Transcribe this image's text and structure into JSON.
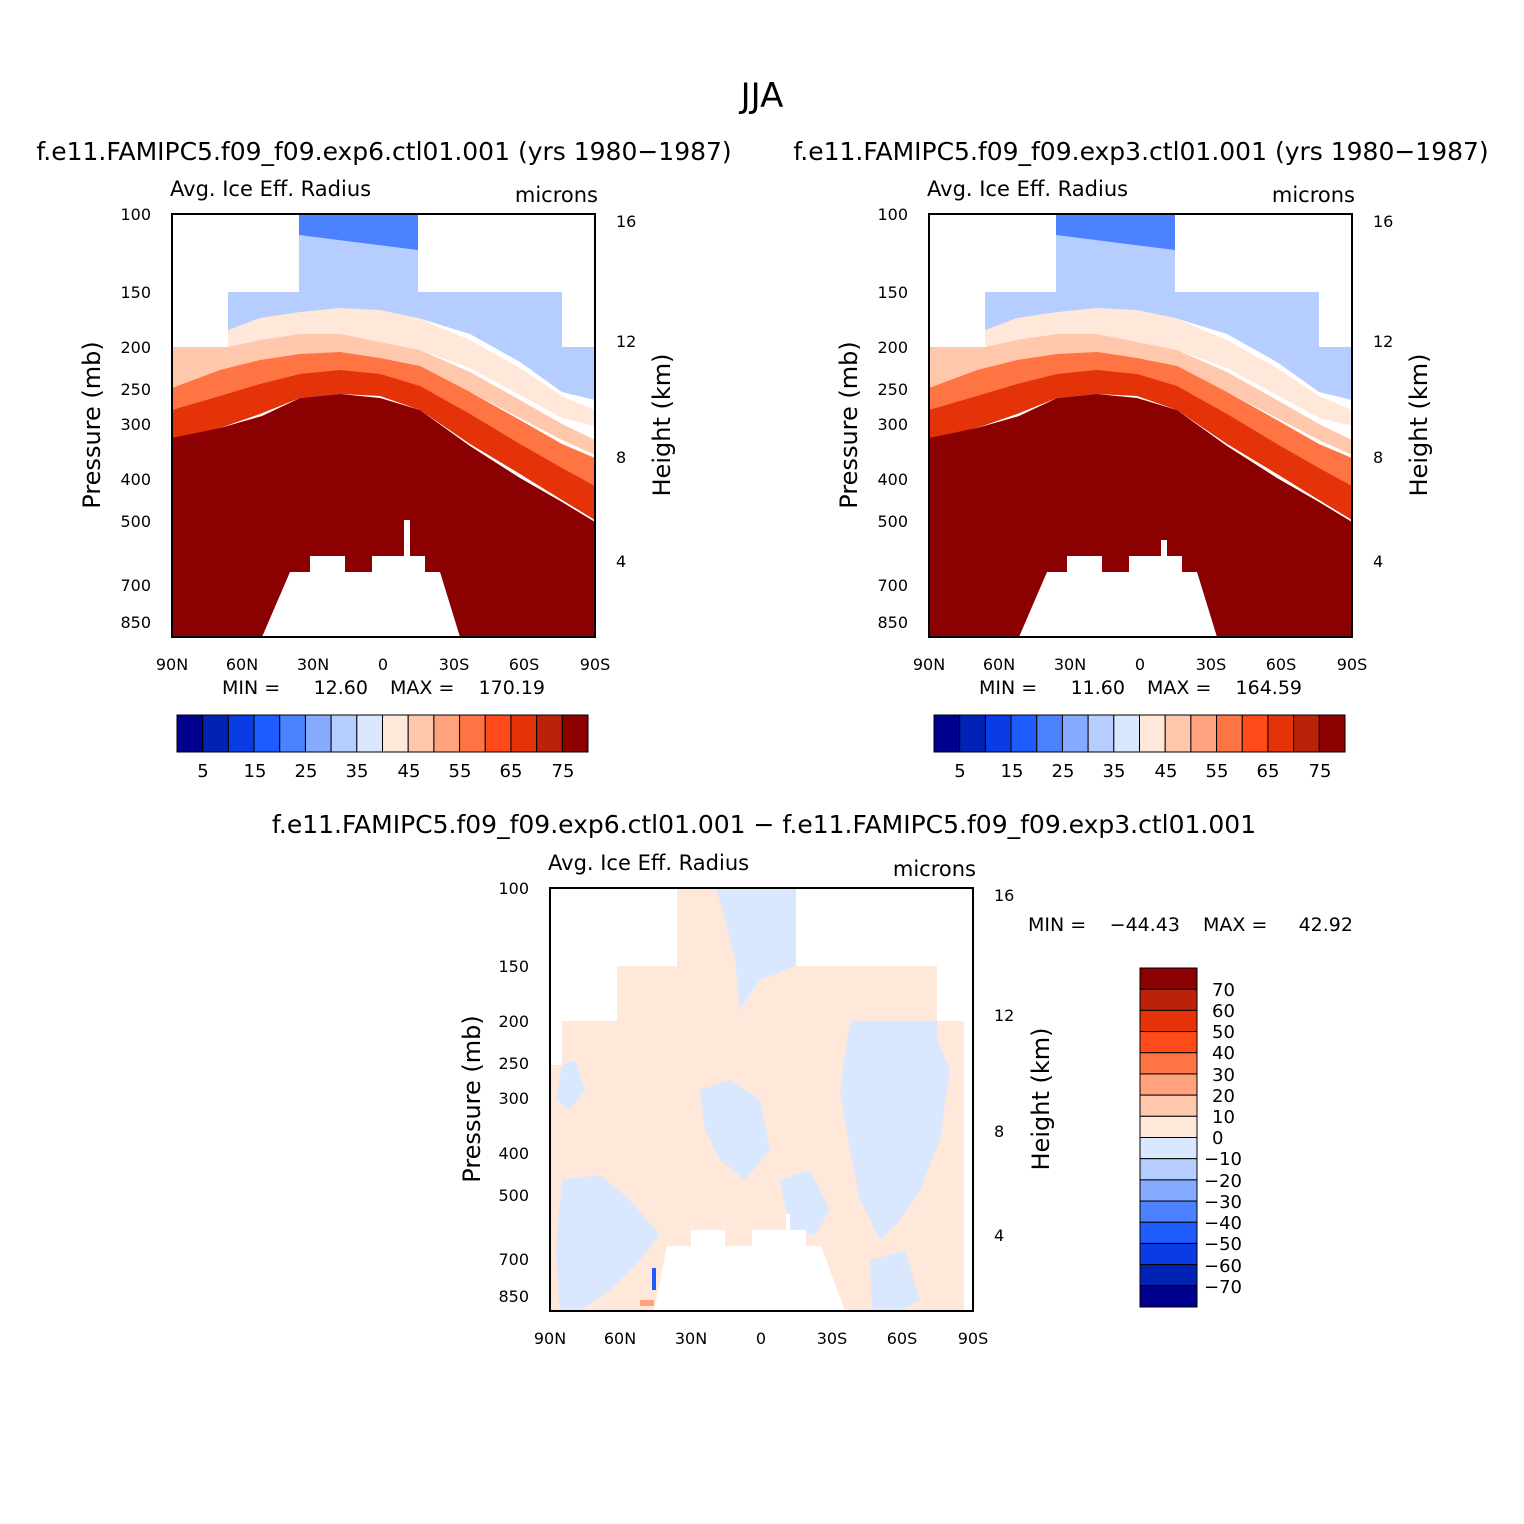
{
  "figure": {
    "season": "JJA",
    "panel_titles": [
      "f.e11.FAMIPC5.f09_f09.exp6.ctl01.001 (yrs 1980−1987)",
      "f.e11.FAMIPC5.f09_f09.exp3.ctl01.001 (yrs 1980−1987)",
      "f.e11.FAMIPC5.f09_f09.exp6.ctl01.001 − f.e11.FAMIPC5.f09_f09.exp3.ctl01.001"
    ]
  },
  "chart_data": [
    {
      "type": "heatmap",
      "variable": "Avg. Ice Eff. Radius",
      "units": "microns",
      "ylabel": "Pressure (mb)",
      "ylabel_right": "Height (km)",
      "x_ticks": [
        "90N",
        "60N",
        "30N",
        "0",
        "30S",
        "60S",
        "90S"
      ],
      "y_ticks": [
        "100",
        "150",
        "200",
        "250",
        "300",
        "400",
        "500",
        "700",
        "850"
      ],
      "y_right_ticks": [
        "16",
        "12",
        "8",
        "4"
      ],
      "min_label": "MIN =",
      "min_value": "12.60",
      "max_label": "MAX =",
      "max_value": "170.19",
      "colorbar_labels": [
        "5",
        "15",
        "25",
        "35",
        "45",
        "55",
        "65",
        "75"
      ],
      "colorbar_colors": [
        "#00008f",
        "#0023b5",
        "#0a3ce6",
        "#1f5cff",
        "#4c82ff",
        "#86aaff",
        "#b6cdff",
        "#d9e8fe",
        "#ffe8d9",
        "#ffc8ac",
        "#ffa27d",
        "#ff7443",
        "#ff4b1a",
        "#e43209",
        "#bb2208",
        "#8b0000"
      ]
    },
    {
      "type": "heatmap",
      "variable": "Avg. Ice Eff. Radius",
      "units": "microns",
      "ylabel": "Pressure (mb)",
      "ylabel_right": "Height (km)",
      "x_ticks": [
        "90N",
        "60N",
        "30N",
        "0",
        "30S",
        "60S",
        "90S"
      ],
      "y_ticks": [
        "100",
        "150",
        "200",
        "250",
        "300",
        "400",
        "500",
        "700",
        "850"
      ],
      "y_right_ticks": [
        "16",
        "12",
        "8",
        "4"
      ],
      "min_label": "MIN =",
      "min_value": "11.60",
      "max_label": "MAX =",
      "max_value": "164.59",
      "colorbar_labels": [
        "5",
        "15",
        "25",
        "35",
        "45",
        "55",
        "65",
        "75"
      ],
      "colorbar_colors": [
        "#00008f",
        "#0023b5",
        "#0a3ce6",
        "#1f5cff",
        "#4c82ff",
        "#86aaff",
        "#b6cdff",
        "#d9e8fe",
        "#ffe8d9",
        "#ffc8ac",
        "#ffa27d",
        "#ff7443",
        "#ff4b1a",
        "#e43209",
        "#bb2208",
        "#8b0000"
      ]
    },
    {
      "type": "heatmap",
      "variable": "Avg. Ice Eff. Radius",
      "units": "microns",
      "ylabel": "Pressure (mb)",
      "ylabel_right": "Height (km)",
      "x_ticks": [
        "90N",
        "60N",
        "30N",
        "0",
        "30S",
        "60S",
        "90S"
      ],
      "y_ticks": [
        "100",
        "150",
        "200",
        "250",
        "300",
        "400",
        "500",
        "700",
        "850"
      ],
      "y_right_ticks": [
        "16",
        "12",
        "8",
        "4"
      ],
      "min_label": "MIN =",
      "min_value": "−44.43",
      "max_label": "MAX =",
      "max_value": "42.92",
      "colorbar_labels": [
        "70",
        "60",
        "50",
        "40",
        "30",
        "20",
        "10",
        "0",
        "−10",
        "−20",
        "−30",
        "−40",
        "−50",
        "−60",
        "−70"
      ],
      "colorbar_colors": [
        "#8b0000",
        "#bb2208",
        "#e43209",
        "#ff4b1a",
        "#ff7443",
        "#ffa27d",
        "#ffc8ac",
        "#ffe8d9",
        "#d9e8fe",
        "#b6cdff",
        "#86aaff",
        "#4c82ff",
        "#1f5cff",
        "#0a3ce6",
        "#0023b5",
        "#00008f"
      ]
    }
  ]
}
